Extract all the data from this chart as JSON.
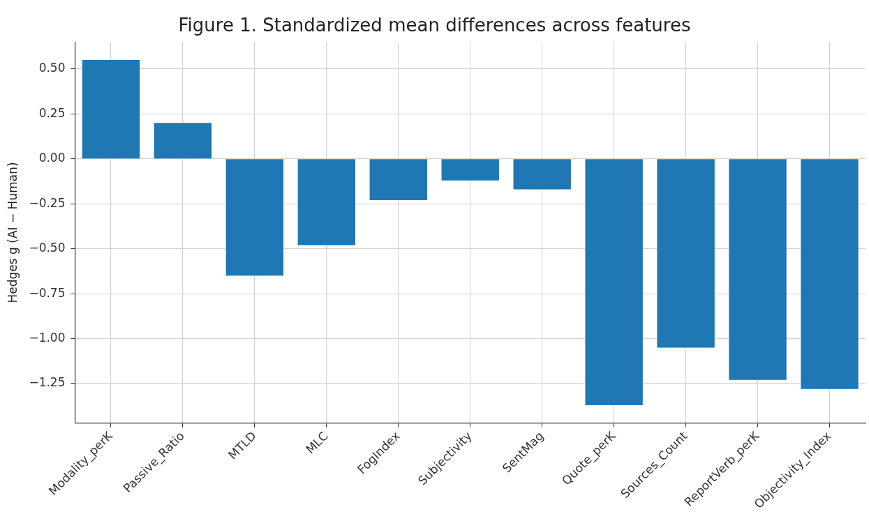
{
  "chart_data": {
    "type": "bar",
    "title": "Figure 1. Standardized mean differences across features",
    "ylabel": "Hedges g (AI − Human)",
    "categories": [
      "Modality_perK",
      "Passive_Ratio",
      "MTLD",
      "MLC",
      "FogIndex",
      "Subjectivity",
      "SentMag",
      "Quote_perK",
      "Sources_Count",
      "ReportVerb_perK",
      "Objectivity_Index"
    ],
    "values": [
      0.55,
      0.2,
      -0.65,
      -0.48,
      -0.23,
      -0.12,
      -0.17,
      -1.37,
      -1.05,
      -1.23,
      -1.28
    ],
    "color": "#1f77b4",
    "ylim": [
      -1.47,
      0.65
    ],
    "yticks": [
      {
        "value": -1.25,
        "label": "−1.25"
      },
      {
        "value": -1,
        "label": "−1.00"
      },
      {
        "value": -0.75,
        "label": "−0.75"
      },
      {
        "value": -0.5,
        "label": "−0.50"
      },
      {
        "value": -0.25,
        "label": "−0.25"
      },
      {
        "value": 0,
        "label": "0.00"
      },
      {
        "value": 0.25,
        "label": "0.25"
      },
      {
        "value": 0.5,
        "label": "0.50"
      }
    ],
    "grid": true,
    "legend": false
  }
}
